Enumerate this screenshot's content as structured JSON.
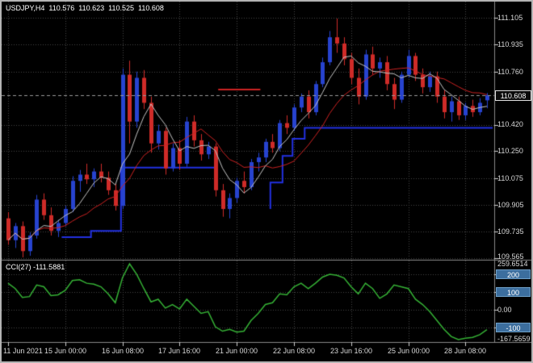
{
  "header": {
    "symbol_period": "USDJPY,H4",
    "open": "110.576",
    "high": "110.623",
    "low": "110.525",
    "close": "110.608"
  },
  "price_axis": {
    "labels": [
      "111.105",
      "110.935",
      "110.760",
      "110.420",
      "110.250",
      "110.075",
      "109.905",
      "109.735",
      "109.565"
    ],
    "current": "110.608"
  },
  "time_axis": {
    "labels": [
      "11 Jun 2021",
      "15 Jun 00:00",
      "16 Jun 08:00",
      "17 Jun 16:00",
      "21 Jun 00:00",
      "22 Jun 08:00",
      "23 Jun 16:00",
      "25 Jun 00:00",
      "28 Jun 08:00"
    ]
  },
  "cci_panel": {
    "title": "CCI(27) -111.5881",
    "max_label": "259.6514",
    "min_label": "-167.5659",
    "levels": [
      {
        "label": "200",
        "boxed": true
      },
      {
        "label": "100",
        "boxed": true
      },
      {
        "label": "0.00",
        "boxed": false
      },
      {
        "label": "-100",
        "boxed": true
      }
    ]
  },
  "colors": {
    "background": "#000000",
    "grid": "#474747",
    "axis_text": "#d8d8d8",
    "separator": "#8a8a8a",
    "badge_blue": "#3c6e9e"
  },
  "chart_data": {
    "type": "candlestick",
    "symbol": "USDJPY",
    "timeframe": "H4",
    "title": "USDJPY,H4",
    "price_range": [
      109.565,
      111.105
    ],
    "grid_prices": [
      111.105,
      110.935,
      110.76,
      110.42,
      110.25,
      110.075,
      109.905,
      109.735,
      109.565
    ],
    "grid_time_idx": [
      0,
      8,
      16,
      24,
      32,
      40,
      48,
      56,
      64
    ],
    "current_price": 110.608,
    "bull_color": "#2743cf",
    "bear_color": "#cf2b28",
    "ma_fast": {
      "period": 5,
      "color": "#c4c4c4"
    },
    "ma_slow": {
      "period": 12,
      "color": "#cc2222"
    },
    "support_line": {
      "color": "#2230e0",
      "segments": [
        [
          [
            7.5,
            109.7
          ],
          [
            11.6,
            109.7
          ],
          [
            11.6,
            109.74
          ],
          [
            15.8,
            109.74
          ],
          [
            15.8,
            110.145
          ],
          [
            29.1,
            110.145
          ]
        ],
        [
          [
            36.7,
            109.88
          ],
          [
            36.7,
            110.05
          ],
          [
            38.4,
            110.05
          ],
          [
            38.4,
            110.22
          ],
          [
            39.8,
            110.22
          ],
          [
            39.8,
            110.33
          ],
          [
            41.5,
            110.33
          ],
          [
            41.5,
            110.4
          ],
          [
            67.8,
            110.4
          ]
        ]
      ]
    },
    "resistance_mark": {
      "color": "#cc2222",
      "from_idx": 29.4,
      "to_idx": 35.3,
      "price": 110.645
    },
    "candles": [
      [
        109.82,
        109.86,
        109.65,
        109.68
      ],
      [
        109.68,
        109.79,
        109.63,
        109.77
      ],
      [
        109.77,
        109.8,
        109.57,
        109.61
      ],
      [
        109.61,
        109.73,
        109.58,
        109.71
      ],
      [
        109.71,
        109.97,
        109.69,
        109.94
      ],
      [
        109.94,
        109.98,
        109.81,
        109.84
      ],
      [
        109.84,
        109.89,
        109.71,
        109.74
      ],
      [
        109.74,
        109.81,
        109.7,
        109.79
      ],
      [
        109.79,
        109.9,
        109.77,
        109.88
      ],
      [
        109.88,
        110.09,
        109.86,
        110.06
      ],
      [
        110.06,
        110.13,
        109.99,
        110.1
      ],
      [
        110.1,
        110.17,
        110.04,
        110.07
      ],
      [
        110.07,
        110.14,
        110.02,
        110.12
      ],
      [
        110.12,
        110.17,
        110.05,
        110.08
      ],
      [
        110.08,
        110.12,
        109.97,
        110.0
      ],
      [
        110.0,
        110.04,
        109.87,
        109.9
      ],
      [
        109.9,
        110.78,
        109.88,
        110.74
      ],
      [
        110.74,
        110.83,
        110.3,
        110.44
      ],
      [
        110.44,
        110.76,
        110.4,
        110.72
      ],
      [
        110.72,
        110.77,
        110.52,
        110.56
      ],
      [
        110.56,
        110.6,
        110.24,
        110.3
      ],
      [
        110.3,
        110.42,
        110.26,
        110.38
      ],
      [
        110.38,
        110.4,
        110.1,
        110.14
      ],
      [
        110.14,
        110.3,
        110.12,
        110.27
      ],
      [
        110.27,
        110.32,
        110.13,
        110.17
      ],
      [
        110.17,
        110.47,
        110.15,
        110.44
      ],
      [
        110.44,
        110.48,
        110.28,
        110.32
      ],
      [
        110.32,
        110.36,
        110.19,
        110.23
      ],
      [
        110.23,
        110.31,
        110.2,
        110.28
      ],
      [
        110.28,
        110.3,
        109.96,
        110.0
      ],
      [
        110.0,
        110.04,
        109.83,
        109.88
      ],
      [
        109.88,
        109.98,
        109.82,
        109.95
      ],
      [
        109.95,
        110.08,
        109.92,
        110.06
      ],
      [
        110.06,
        110.12,
        109.98,
        110.02
      ],
      [
        110.02,
        110.2,
        110.0,
        110.18
      ],
      [
        110.18,
        110.24,
        110.12,
        110.21
      ],
      [
        110.21,
        110.33,
        110.18,
        110.31
      ],
      [
        110.31,
        110.36,
        110.24,
        110.27
      ],
      [
        110.27,
        110.45,
        110.25,
        110.43
      ],
      [
        110.43,
        110.48,
        110.36,
        110.4
      ],
      [
        110.4,
        110.55,
        110.38,
        110.53
      ],
      [
        110.53,
        110.62,
        110.5,
        110.6
      ],
      [
        110.6,
        110.64,
        110.46,
        110.5
      ],
      [
        110.5,
        110.7,
        110.48,
        110.68
      ],
      [
        110.68,
        110.85,
        110.66,
        110.82
      ],
      [
        110.82,
        111.02,
        110.8,
        110.98
      ],
      [
        110.98,
        111.1,
        110.88,
        110.94
      ],
      [
        110.94,
        110.98,
        110.8,
        110.84
      ],
      [
        110.84,
        110.88,
        110.68,
        110.72
      ],
      [
        110.72,
        110.78,
        110.55,
        110.6
      ],
      [
        110.6,
        110.9,
        110.58,
        110.87
      ],
      [
        110.87,
        110.92,
        110.74,
        110.78
      ],
      [
        110.78,
        110.85,
        110.72,
        110.82
      ],
      [
        110.82,
        110.86,
        110.64,
        110.68
      ],
      [
        110.68,
        110.72,
        110.52,
        110.58
      ],
      [
        110.58,
        110.76,
        110.56,
        110.74
      ],
      [
        110.74,
        110.9,
        110.72,
        110.86
      ],
      [
        110.86,
        110.88,
        110.7,
        110.74
      ],
      [
        110.74,
        110.78,
        110.62,
        110.66
      ],
      [
        110.66,
        110.76,
        110.63,
        110.73
      ],
      [
        110.73,
        110.76,
        110.56,
        110.6
      ],
      [
        110.6,
        110.64,
        110.46,
        110.5
      ],
      [
        110.5,
        110.6,
        110.44,
        110.57
      ],
      [
        110.57,
        110.6,
        110.45,
        110.48
      ],
      [
        110.48,
        110.56,
        110.45,
        110.54
      ],
      [
        110.54,
        110.58,
        110.47,
        110.5
      ],
      [
        110.5,
        110.59,
        110.48,
        110.56
      ],
      [
        110.576,
        110.623,
        110.525,
        110.608
      ]
    ],
    "cci": {
      "period": 27,
      "current": -111.5881,
      "color": "#35b135",
      "range": [
        -167.5659,
        259.6514
      ],
      "levels": [
        200,
        100,
        0,
        -100
      ],
      "values": [
        150,
        120,
        70,
        75,
        140,
        130,
        80,
        85,
        110,
        165,
        170,
        150,
        145,
        130,
        90,
        40,
        180,
        259.6514,
        200,
        120,
        45,
        60,
        10,
        30,
        5,
        60,
        20,
        -20,
        -10,
        -95,
        -120,
        -110,
        -125,
        -120,
        -60,
        -20,
        30,
        40,
        90,
        85,
        130,
        150,
        120,
        150,
        185,
        200,
        195,
        180,
        130,
        90,
        150,
        120,
        65,
        90,
        140,
        130,
        120,
        60,
        30,
        -10,
        -60,
        -110,
        -150,
        -167.5659,
        -160,
        -155,
        -140,
        -111.5881
      ]
    }
  }
}
